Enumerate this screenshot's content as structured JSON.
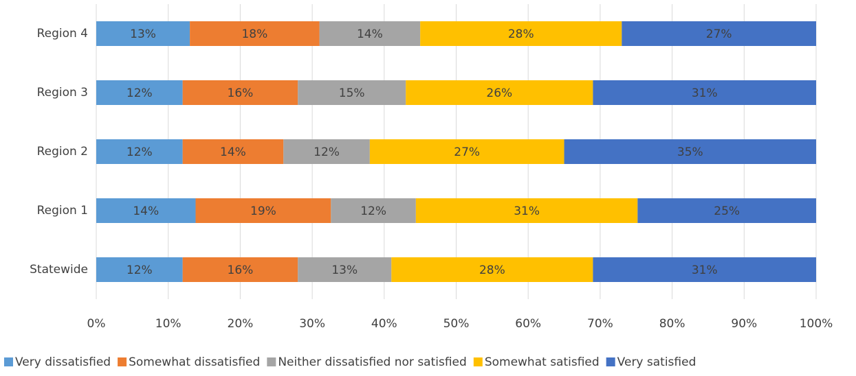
{
  "chart_data": {
    "type": "stacked-bar-horizontal",
    "categories": [
      "Statewide",
      "Region 1",
      "Region 2",
      "Region 3",
      "Region 4"
    ],
    "series": [
      {
        "name": "Very dissatisfied",
        "color": "#5b9bd5",
        "values": [
          12,
          13.8,
          12,
          12,
          13
        ],
        "value_labels": [
          "12%",
          "14%",
          "12%",
          "12%",
          "13%"
        ]
      },
      {
        "name": "Somewhat dissatisfied",
        "color": "#ed7d31",
        "values": [
          16,
          18.8,
          14,
          16,
          18
        ],
        "value_labels": [
          "16%",
          "19%",
          "14%",
          "16%",
          "18%"
        ]
      },
      {
        "name": "Neither dissatisfied nor satisfied",
        "color": "#a5a5a5",
        "values": [
          13,
          11.8,
          12,
          15,
          14
        ],
        "value_labels": [
          "13%",
          "12%",
          "12%",
          "15%",
          "14%"
        ]
      },
      {
        "name": "Somewhat satisfied",
        "color": "#ffc000",
        "values": [
          28,
          30.8,
          27,
          26,
          28
        ],
        "value_labels": [
          "28%",
          "31%",
          "27%",
          "26%",
          "28%"
        ]
      },
      {
        "name": "Very satisfied",
        "color": "#4472c4",
        "values": [
          31,
          24.8,
          35,
          31,
          27
        ],
        "value_labels": [
          "31%",
          "25%",
          "35%",
          "31%",
          "27%"
        ]
      }
    ],
    "xlim": [
      0,
      100
    ],
    "xticks": [
      {
        "value": 0,
        "label": "0%"
      },
      {
        "value": 10,
        "label": "10%"
      },
      {
        "value": 20,
        "label": "20%"
      },
      {
        "value": 30,
        "label": "30%"
      },
      {
        "value": 40,
        "label": "40%"
      },
      {
        "value": 50,
        "label": "50%"
      },
      {
        "value": 60,
        "label": "60%"
      },
      {
        "value": 70,
        "label": "70%"
      },
      {
        "value": 80,
        "label": "80%"
      },
      {
        "value": 90,
        "label": "90%"
      },
      {
        "value": 100,
        "label": "100%"
      }
    ],
    "grid": true,
    "legend": "bottom"
  }
}
